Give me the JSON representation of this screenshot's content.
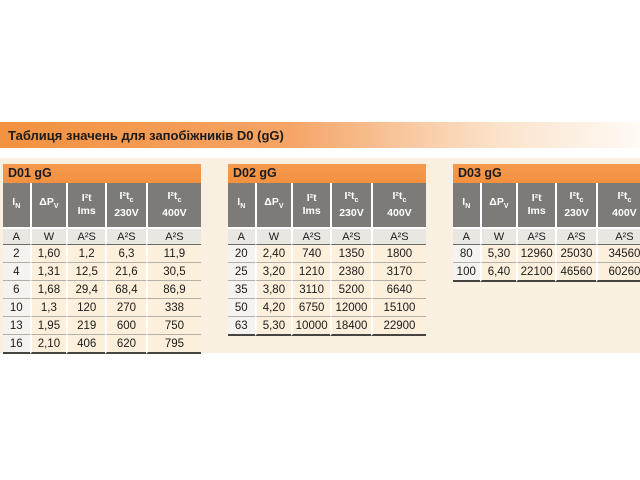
{
  "page": {
    "title": "Таблиця значень для запобіжників D0 (gG)"
  },
  "columns": [
    {
      "main": "I",
      "sub": "N",
      "line2": "",
      "unit": "A"
    },
    {
      "main": "ΔP",
      "sub": "V",
      "line2": "",
      "unit": "W"
    },
    {
      "main": "I²t",
      "sub": "",
      "line2": "Ims",
      "unit": "A²S"
    },
    {
      "main": "I²t",
      "sub": "c",
      "line2": "230V",
      "unit": "A²S"
    },
    {
      "main": "I²t",
      "sub": "c",
      "line2": "400V",
      "unit": "A²S"
    }
  ],
  "tables": [
    {
      "title": "D01 gG",
      "rows": [
        [
          "2",
          "1,60",
          "1,2",
          "6,3",
          "11,9"
        ],
        [
          "4",
          "1,31",
          "12,5",
          "21,6",
          "30,5"
        ],
        [
          "6",
          "1,68",
          "29,4",
          "68,4",
          "86,9"
        ],
        [
          "10",
          "1,3",
          "120",
          "270",
          "338"
        ],
        [
          "13",
          "1,95",
          "219",
          "600",
          "750"
        ],
        [
          "16",
          "2,10",
          "406",
          "620",
          "795"
        ]
      ]
    },
    {
      "title": "D02 gG",
      "rows": [
        [
          "20",
          "2,40",
          "740",
          "1350",
          "1800"
        ],
        [
          "25",
          "3,20",
          "1210",
          "2380",
          "3170"
        ],
        [
          "35",
          "3,80",
          "3110",
          "5200",
          "6640"
        ],
        [
          "50",
          "4,20",
          "6750",
          "12000",
          "15100"
        ],
        [
          "63",
          "5,30",
          "10000",
          "18400",
          "22900"
        ]
      ]
    },
    {
      "title": "D03 gG",
      "rows": [
        [
          "80",
          "5,30",
          "12960",
          "25030",
          "34560"
        ],
        [
          "100",
          "6,40",
          "22100",
          "46560",
          "60260"
        ]
      ]
    }
  ],
  "colors": {
    "accent-orange": "#f2913f",
    "header-gray": "#7c7b78",
    "units-gray": "#e9e7e2",
    "row-peach": "#fcefdc",
    "row-first-col": "#f4f3ef",
    "panel-cream": "#faf0e2",
    "text-dark": "#1c1b19",
    "caption-text": "#1a1a22",
    "border-dark": "#45443e",
    "row-line": "#b3b0a9"
  }
}
